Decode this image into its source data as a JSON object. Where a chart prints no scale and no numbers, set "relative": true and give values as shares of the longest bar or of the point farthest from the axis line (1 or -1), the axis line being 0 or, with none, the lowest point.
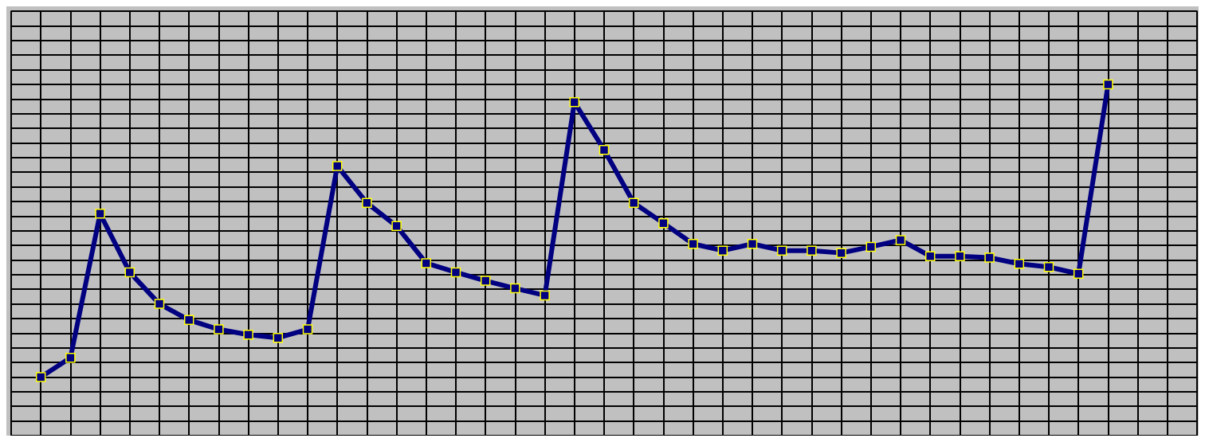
{
  "chart_data": {
    "type": "line",
    "relative": true,
    "categories": [
      null,
      null,
      null,
      null,
      null,
      null,
      null,
      null,
      null,
      null,
      null,
      null,
      null,
      null,
      null,
      null,
      null,
      null,
      null,
      null,
      null,
      null,
      null,
      null,
      null,
      null,
      null,
      null,
      null,
      null,
      null,
      null,
      null,
      null,
      null,
      null,
      null
    ],
    "series": [
      {
        "color": "#000080",
        "values": [
          0,
          0.066,
          0.558,
          0.358,
          0.25,
          0.195,
          0.163,
          0.145,
          0.134,
          0.163,
          0.721,
          0.595,
          0.516,
          0.389,
          0.358,
          0.329,
          0.303,
          0.279,
          0.939,
          0.776,
          0.595,
          0.526,
          0.455,
          0.432,
          0.455,
          0.432,
          0.432,
          0.424,
          0.445,
          0.468,
          0.413,
          0.413,
          0.408,
          0.387,
          0.376,
          0.353,
          1
        ]
      }
    ],
    "grid": true,
    "marker": "square",
    "line_style": "solid"
  }
}
